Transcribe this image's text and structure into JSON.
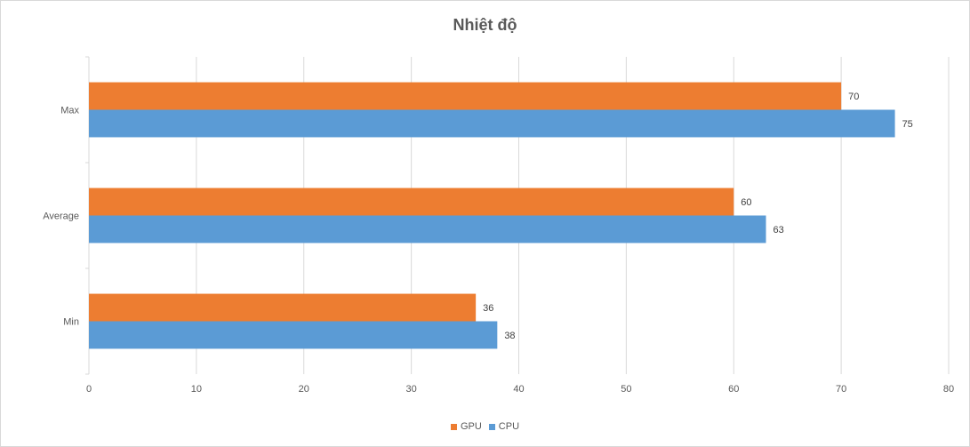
{
  "chart_data": {
    "type": "bar",
    "orientation": "horizontal",
    "title": "Nhiệt độ",
    "categories": [
      "Max",
      "Average",
      "Min"
    ],
    "series": [
      {
        "name": "GPU",
        "color": "#ed7d31",
        "values": [
          70,
          60,
          36
        ]
      },
      {
        "name": "CPU",
        "color": "#5b9bd5",
        "values": [
          75,
          63,
          38
        ]
      }
    ],
    "xlim": [
      0,
      80
    ],
    "xticks": [
      0,
      10,
      20,
      30,
      40,
      50,
      60,
      70,
      80
    ],
    "grid": true,
    "data_labels": true,
    "legend_position": "bottom"
  }
}
